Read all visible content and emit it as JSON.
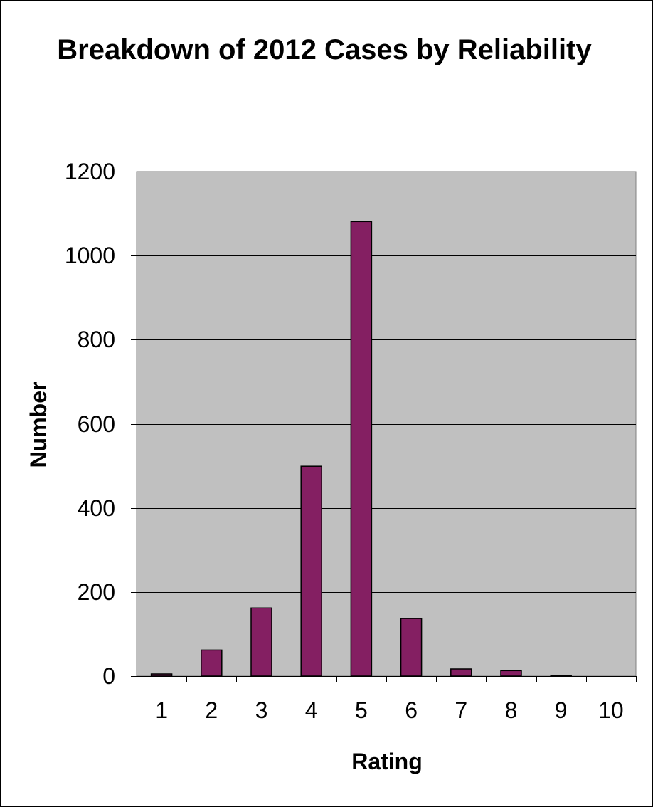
{
  "chart_data": {
    "type": "bar",
    "title": "Breakdown of 2012 Cases by Reliability",
    "xlabel": "Rating",
    "ylabel": "Number",
    "categories": [
      "1",
      "2",
      "3",
      "4",
      "5",
      "6",
      "7",
      "8",
      "9",
      "10"
    ],
    "values": [
      5,
      62,
      162,
      499,
      1081,
      137,
      17,
      13,
      2,
      0
    ],
    "ylim": [
      0,
      1200
    ],
    "yticks": [
      0,
      200,
      400,
      600,
      800,
      1000,
      1200
    ],
    "grid": true,
    "legend": "none",
    "colors": {
      "bar": "#841F62",
      "plot_background": "#C0C0C0",
      "gridline": "#000000"
    }
  }
}
